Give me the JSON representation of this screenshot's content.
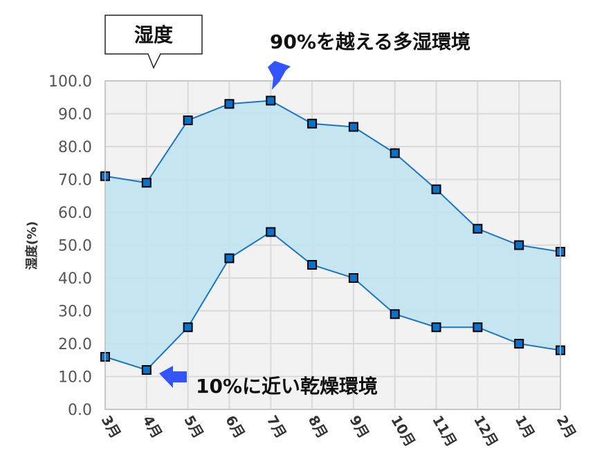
{
  "chart_data": {
    "type": "area",
    "title": "湿度",
    "ylabel": "湿度(%)",
    "xlabel": "",
    "categories": [
      "3月",
      "4月",
      "5月",
      "6月",
      "7月",
      "8月",
      "9月",
      "10月",
      "11月",
      "12月",
      "1月",
      "2月"
    ],
    "series": [
      {
        "values": [
          71,
          69,
          88,
          93,
          94,
          87,
          86,
          78,
          67,
          55,
          50,
          48
        ]
      },
      {
        "values": [
          16,
          12,
          25,
          46,
          54,
          44,
          40,
          29,
          25,
          25,
          20,
          18
        ]
      }
    ],
    "ylim": [
      0,
      100
    ],
    "yticks": [
      "0.0",
      "10.0",
      "20.0",
      "30.0",
      "40.0",
      "50.0",
      "60.0",
      "70.0",
      "80.0",
      "90.0",
      "100.0"
    ],
    "grid": true,
    "annotations": [
      {
        "text": "90%を越える多湿環境",
        "target": "7月"
      },
      {
        "text": "10%に近い乾燥環境",
        "target": "4月"
      }
    ],
    "colors": {
      "line": "#1a75c2",
      "fill": "#c2e4f0",
      "marker": "#0a70c8",
      "plot_bg": "#f2f2f2",
      "grid": "#d9d9d9",
      "arrow": "#3355ff"
    }
  }
}
